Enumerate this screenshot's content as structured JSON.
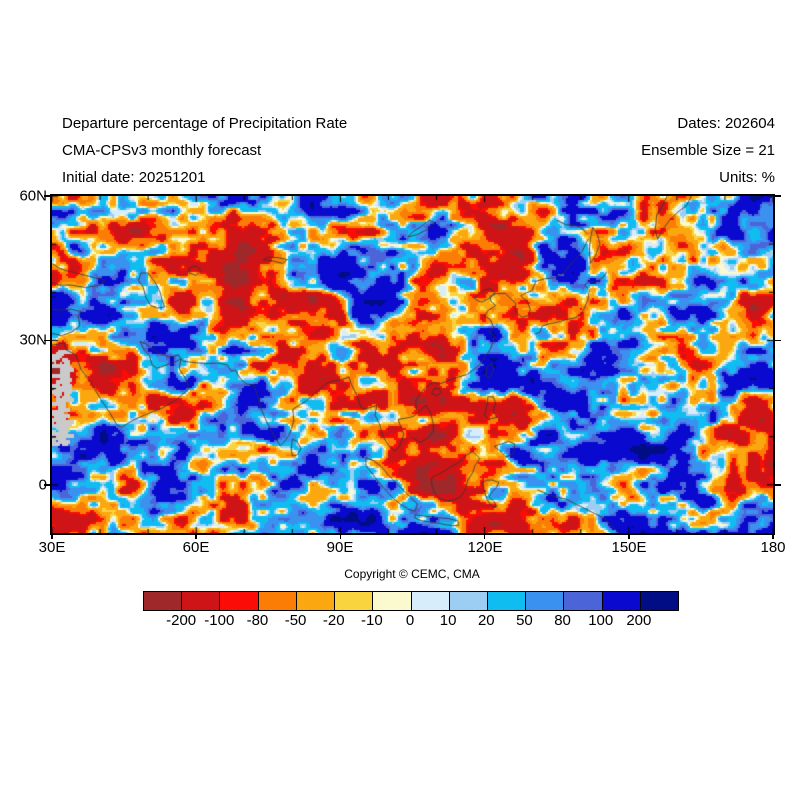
{
  "header": {
    "title": "Departure percentage of Precipitation Rate",
    "subtitle": "CMA-CPSv3 monthly forecast",
    "initial_date": "Initial date: 20251201",
    "dates": "Dates: 202604",
    "ensemble": "Ensemble Size = 21",
    "units": "Units: %"
  },
  "map": {
    "y_tick_labels": [
      "60N",
      "30N",
      "0"
    ],
    "x_tick_labels": [
      "30E",
      "60E",
      "90E",
      "120E",
      "150E",
      "180"
    ]
  },
  "footer": {
    "copyright": "Copyright © CEMC, CMA"
  },
  "colorbar": {
    "labels": [
      "-200",
      "-100",
      "-80",
      "-50",
      "-20",
      "-10",
      "0",
      "10",
      "20",
      "50",
      "80",
      "100",
      "200"
    ],
    "colors": [
      "#9f282b",
      "#ce1417",
      "#fb0c07",
      "#fb7d05",
      "#fba70f",
      "#f9d43f",
      "#fbf9ce",
      "#d7edfb",
      "#9ccdf2",
      "#0fbdf1",
      "#3a91f0",
      "#4b65d9",
      "#0909cf",
      "#000d85"
    ]
  },
  "chart_data": {
    "type": "heatmap",
    "title": "Departure percentage of Precipitation Rate",
    "subtitle": "CMA-CPSv3 monthly forecast",
    "initial_date": "20251201",
    "valid_date": "202604",
    "ensemble_size": 21,
    "units": "%",
    "x_ticks_labeled": [
      "30E",
      "60E",
      "90E",
      "120E",
      "150E",
      "180"
    ],
    "y_ticks_labeled": [
      "60N",
      "30N",
      "0"
    ],
    "lon_range": [
      30,
      180
    ],
    "lat_range": [
      -10,
      60
    ],
    "grid": false,
    "legend_position": "bottom",
    "colorbar_boundaries": [
      -200,
      -100,
      -80,
      -50,
      -20,
      -10,
      0,
      10,
      20,
      50,
      80,
      100,
      200
    ],
    "palette": [
      "#9f282b",
      "#ce1417",
      "#fb0c07",
      "#fb7d05",
      "#fba70f",
      "#f9d43f",
      "#fbf9ce",
      "#d7edfb",
      "#9ccdf2",
      "#0fbdf1",
      "#3a91f0",
      "#4b65d9",
      "#0909cf",
      "#000d85"
    ],
    "masked_color": "#cacaca",
    "coastline_color": "#333333"
  }
}
